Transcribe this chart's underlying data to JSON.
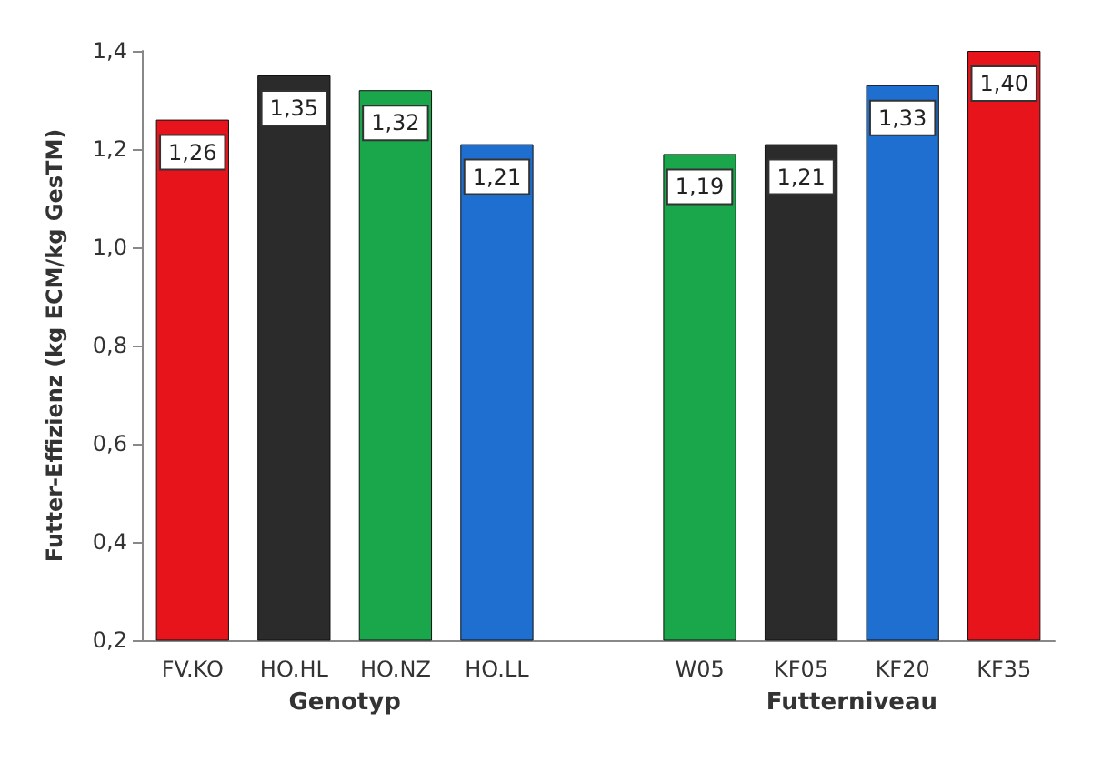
{
  "chart_data": {
    "type": "bar",
    "ylabel": "Futter-Effizienz (kg ECM/kg GesTM)",
    "categories": [
      "FV.KO",
      "HO.HL",
      "HO.NZ",
      "HO.LL",
      null,
      "W05",
      "KF05",
      "KF20",
      "KF35"
    ],
    "values": [
      1.26,
      1.35,
      1.32,
      1.21,
      null,
      1.19,
      1.21,
      1.33,
      1.4
    ],
    "colors": [
      "#e8141c",
      "#2b2b2b",
      "#1aa64a",
      "#1e6fd0",
      "#ffffff",
      "#1aa64a",
      "#2b2b2b",
      "#1e6fd0",
      "#e8141c"
    ],
    "value_labels": [
      "1,26",
      "1,35",
      "1,32",
      "1,21",
      null,
      "1,19",
      "1,21",
      "1,33",
      "1,40"
    ],
    "ylim": [
      0.2,
      1.4
    ],
    "yticks": [
      {
        "value": 0.2,
        "label": "0,2"
      },
      {
        "value": 0.4,
        "label": "0,4"
      },
      {
        "value": 0.6,
        "label": "0,6"
      },
      {
        "value": 0.8,
        "label": "0,8"
      },
      {
        "value": 1.0,
        "label": "1,0"
      },
      {
        "value": 1.2,
        "label": "1,2"
      },
      {
        "value": 1.4,
        "label": "1,4"
      }
    ],
    "annotations": [
      "Genotyp",
      "Futterniveau"
    ],
    "grid": false
  }
}
